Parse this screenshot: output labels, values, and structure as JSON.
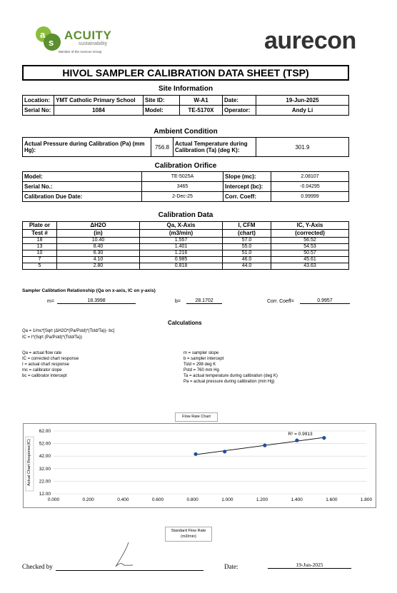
{
  "logos": {
    "acuity_name": "ACUITY",
    "acuity_sub": "sustainability",
    "acuity_tag": "Member of the Aurecon Group",
    "aurecon_name": "aurecon"
  },
  "title": "HIVOL SAMPLER CALIBRATION  DATA SHEET (TSP)",
  "site": {
    "heading": "Site Information",
    "location_label": "Location:",
    "location_value": "YMT Catholic Primary School",
    "site_id_label": "Site ID:",
    "site_id_value": "W-A1",
    "date_label": "Date:",
    "date_value": "19-Jun-2025",
    "serial_label": "Serial No:",
    "serial_value": "1084",
    "model_label": "Model:",
    "model_value": "TE-5170X",
    "operator_label": "Operator:",
    "operator_value": "Andy Li"
  },
  "ambient": {
    "heading": "Ambient Condition",
    "pressure_label": "Actual Pressure during Calibration (Pa) (mm Hg):",
    "pressure_value": "756.8",
    "temp_label": "Actual Temperature during Calibration (Ta) (deg K):",
    "temp_value": "301.9"
  },
  "orifice": {
    "heading": "Calibration Orifice",
    "model_label": "Model:",
    "model_value": "TE-5025A",
    "slope_label": "Slope (mc):",
    "slope_value": "2.08107",
    "serial_label": "Serial No.:",
    "serial_value": "3465",
    "intercept_label": "Intercept (bc):",
    "intercept_value": "-0.04295",
    "due_label": "Calibration Due Date:",
    "due_value": "2-Dec-25",
    "coeff_label": "Corr. Coeff:",
    "coeff_value": "0.99999"
  },
  "cal_data": {
    "heading": "Calibration Data",
    "headers_top": [
      "Plate or",
      "ΔH2O",
      "Qa, X-Axis",
      "I, CFM",
      "IC, Y-Axis"
    ],
    "headers_bot": [
      "Test #",
      "(in)",
      "(m3/min)",
      "(chart)",
      "(corrected)"
    ],
    "rows": [
      [
        "18",
        "10.40",
        "1.557",
        "57.0",
        "56.52"
      ],
      [
        "13",
        "8.40",
        "1.401",
        "55.0",
        "54.53"
      ],
      [
        "10",
        "6.30",
        "1.216",
        "51.0",
        "50.57"
      ],
      [
        "7",
        "4.10",
        "0.985",
        "46.0",
        "45.61"
      ],
      [
        "5",
        "2.80",
        "0.818",
        "44.0",
        "43.63"
      ]
    ]
  },
  "relationship": {
    "title": "Sampler Calibtation Relationship (Qa on x-axis, IC on y-axis)",
    "m_label": "m=",
    "m_value": "18.3998",
    "b_label": "b=",
    "b_value": "28.1702",
    "r_label": "Corr. Coeff=",
    "r_value": "0.9957"
  },
  "calculations": {
    "heading": "Calculations",
    "formula1": "Qa = 1/mc*[Sqrt (ΔH2O*(Pa/Pstd)*(Tstd/Ta))- bc]",
    "formula2": "IC = I*(Sqrt (Pa/Pstd)*(Tstd/Ta))",
    "left_notes": [
      "Qa = actual flow rate",
      "IC = corrected chart response",
      "I = actual chart response",
      "mc = calibrator slope",
      "bc = calibrator intercept"
    ],
    "right_notes": [
      "m = sampler slope",
      "b = sampler intercept",
      "Tstd = 298 deg K",
      "Pstd = 760 mm Hg",
      "Ta = actual temperature during calibration (deg K)",
      "Pa = actual pressure during calibration (mm Hg)"
    ]
  },
  "chart_data": {
    "type": "scatter",
    "title": "Flow Rate Chart",
    "xlabel": "Standard Flow Rate (m3/min)",
    "ylabel": "Actual Chart Response(IC)",
    "x": [
      0.818,
      0.985,
      1.216,
      1.401,
      1.557
    ],
    "y": [
      43.63,
      45.61,
      50.57,
      54.53,
      56.52
    ],
    "trendline": true,
    "annotation": "R² = 0.9913",
    "xlim": [
      0.0,
      1.8
    ],
    "ylim": [
      12.0,
      62.0
    ],
    "xticks": [
      "0.000",
      "0.200",
      "0.400",
      "0.600",
      "0.800",
      "1.000",
      "1.200",
      "1.400",
      "1.600",
      "1.800"
    ],
    "yticks": [
      "12.00",
      "22.00",
      "32.00",
      "42.00",
      "52.00",
      "62.00"
    ],
    "grid": "horizontal"
  },
  "footer": {
    "checked_label": "Checked by",
    "date_label": "Date:",
    "date_value": "19-Jun-2025"
  }
}
